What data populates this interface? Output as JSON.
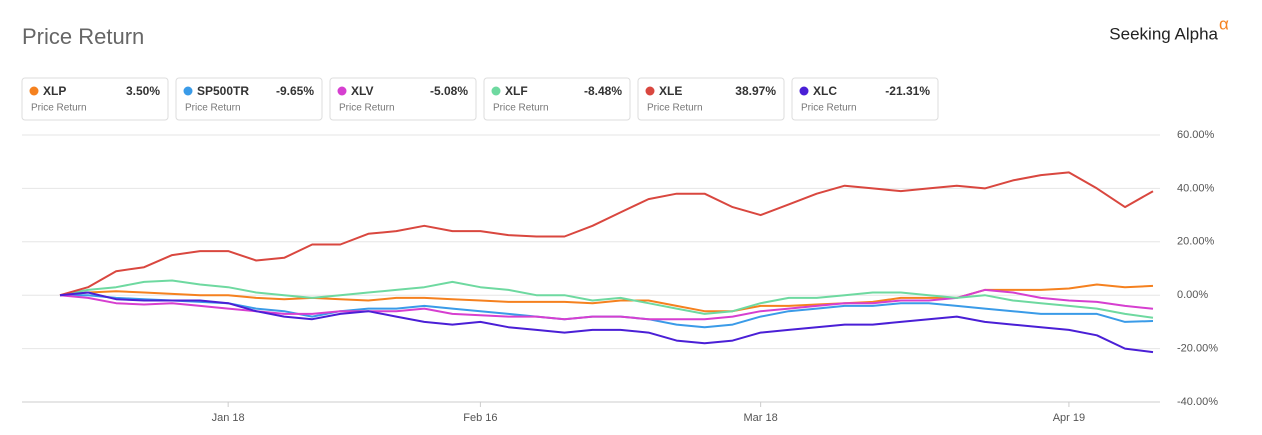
{
  "brand": {
    "name": "Seeking Alpha",
    "mark": "α"
  },
  "chart_data": {
    "type": "line",
    "title": "Price Return",
    "legend_subtitle": "Price Return",
    "categories": [
      null,
      null,
      null,
      null,
      null,
      null,
      "Jan 18",
      null,
      null,
      null,
      null,
      null,
      null,
      null,
      null,
      "Feb 16",
      null,
      null,
      null,
      null,
      null,
      null,
      null,
      null,
      null,
      "Mar 18",
      null,
      null,
      null,
      null,
      null,
      null,
      null,
      null,
      null,
      null,
      "Apr 19",
      null,
      null,
      null
    ],
    "ylim": [
      -40,
      60
    ],
    "yticks": [
      {
        "value": -40,
        "label": "-40.00%"
      },
      {
        "value": -20,
        "label": "-20.00%"
      },
      {
        "value": 0,
        "label": "0.00%"
      },
      {
        "value": 20,
        "label": "20.00%"
      },
      {
        "value": 40,
        "label": "40.00%"
      },
      {
        "value": 60,
        "label": "60.00%"
      }
    ],
    "grid": true,
    "series": [
      {
        "name": "XLP",
        "color": "#f5811f",
        "return": 3.5,
        "return_label": "3.50%",
        "values": [
          0,
          1,
          1.5,
          1,
          0.5,
          0,
          0,
          -1,
          -1.5,
          -1,
          -1.5,
          -2,
          -1,
          -1,
          -1.5,
          -2,
          -2.5,
          -2.5,
          -2.5,
          -3,
          -2,
          -2,
          -4,
          -6,
          -6,
          -4,
          -4,
          -3.5,
          -3,
          -2.5,
          -1,
          -1,
          -1,
          2,
          2,
          2,
          2.5,
          4,
          3,
          3.5
        ]
      },
      {
        "name": "SP500TR",
        "color": "#3a9be8",
        "return": -9.65,
        "return_label": "-9.65%",
        "values": [
          0,
          0,
          -1,
          -1.5,
          -2,
          -2.5,
          -3,
          -5,
          -6,
          -8,
          -6,
          -5,
          -5,
          -4,
          -5,
          -6,
          -7,
          -8,
          -9,
          -8,
          -8,
          -9,
          -11,
          -12,
          -11,
          -8,
          -6,
          -5,
          -4,
          -4,
          -3,
          -3,
          -4,
          -5,
          -6,
          -7,
          -7,
          -7,
          -10,
          -9.65
        ]
      },
      {
        "name": "XLV",
        "color": "#d63fd0",
        "return": -5.08,
        "return_label": "-5.08%",
        "values": [
          0,
          -1,
          -3,
          -3.5,
          -3,
          -4,
          -5,
          -6,
          -7,
          -7,
          -6,
          -6,
          -6,
          -5,
          -7,
          -7.5,
          -8,
          -8,
          -9,
          -8,
          -8,
          -9,
          -9,
          -9,
          -8,
          -6,
          -5,
          -4,
          -3,
          -3,
          -2,
          -2,
          -1,
          2,
          1,
          -1,
          -2,
          -2.5,
          -4,
          -5.08
        ]
      },
      {
        "name": "XLF",
        "color": "#6ed9a0",
        "return": -8.48,
        "return_label": "-8.48%",
        "values": [
          0,
          2,
          3,
          5,
          5.5,
          4,
          3,
          1,
          0,
          -1,
          0,
          1,
          2,
          3,
          5,
          3,
          2,
          0,
          0,
          -2,
          -1,
          -3,
          -5,
          -7,
          -6,
          -3,
          -1,
          -1,
          0,
          1,
          1,
          0,
          -1,
          0,
          -2,
          -3,
          -4,
          -5,
          -7,
          -8.48
        ]
      },
      {
        "name": "XLE",
        "color": "#d9473f",
        "return": 38.97,
        "return_label": "38.97%",
        "values": [
          0,
          3,
          9,
          10.5,
          15,
          16.5,
          16.5,
          13,
          14,
          19,
          19,
          23,
          24,
          26,
          24,
          24,
          22.5,
          22,
          22,
          26,
          31,
          36,
          38,
          38,
          33,
          30,
          34,
          38,
          41,
          40,
          39,
          40,
          41,
          40,
          43,
          45,
          46,
          40,
          33,
          38.97
        ]
      },
      {
        "name": "XLC",
        "color": "#4a1fd6",
        "return": -21.31,
        "return_label": "-21.31%",
        "values": [
          0,
          1,
          -1.5,
          -2,
          -2,
          -2,
          -3,
          -6,
          -8,
          -9,
          -7,
          -6,
          -8,
          -10,
          -11,
          -10,
          -12,
          -13,
          -14,
          -13,
          -13,
          -14,
          -17,
          -18,
          -17,
          -14,
          -13,
          -12,
          -11,
          -11,
          -10,
          -9,
          -8,
          -10,
          -11,
          -12,
          -13,
          -15,
          -20,
          -21.31
        ]
      }
    ]
  }
}
